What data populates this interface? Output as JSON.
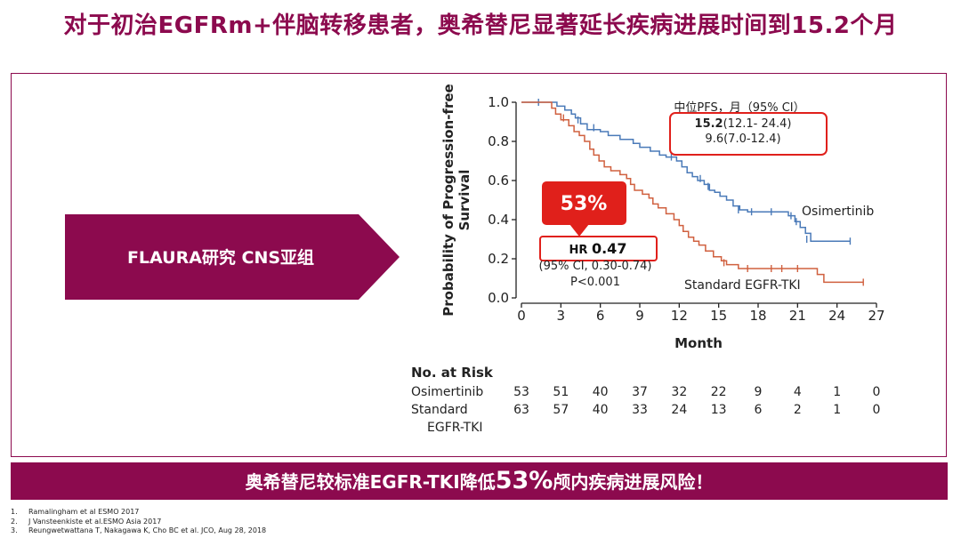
{
  "slide": {
    "title": "对于初治EGFRm+伴脑转移患者，奥希替尼显著延长疾病进展时间到15.2个月",
    "arrow_label": "FLAURA研究 CNS亚组",
    "banner_pre": "奥希替尼较标准EGFR-TKI降低",
    "banner_big": "53%",
    "banner_post": "颅内疾病进展风险！",
    "references": [
      {
        "num": "1.",
        "text": "Ramalingham et al ESMO 2017"
      },
      {
        "num": "2.",
        "text": "J Vansteenkiste et al.ESMO Asia 2017"
      },
      {
        "num": "3.",
        "text": "Reungwetwattana T, Nakagawa K, Cho BC et al. JCO, Aug 28, 2018"
      }
    ],
    "colors": {
      "brand": "#8c0a4e",
      "osimertinib": "#4a7ab8",
      "standard": "#d0603f",
      "callout_red": "#e0201b"
    }
  },
  "chart_data": {
    "type": "line",
    "xlabel": "Month",
    "ylabel_line1": "Probability of Progression-free",
    "ylabel_line2": "Survival",
    "xlim": [
      0,
      27
    ],
    "ylim": [
      0,
      1.0
    ],
    "x_ticks": [
      0,
      3,
      6,
      9,
      12,
      15,
      18,
      21,
      24,
      27
    ],
    "y_ticks": [
      "0.0",
      "0.2",
      "0.4",
      "0.6",
      "0.8",
      "1.0"
    ],
    "series": [
      {
        "name": "Osimertinib",
        "color": "#4a7ab8",
        "steps": [
          [
            0,
            1.0
          ],
          [
            1.5,
            1.0
          ],
          [
            2.7,
            0.98
          ],
          [
            3.3,
            0.96
          ],
          [
            3.8,
            0.94
          ],
          [
            4.1,
            0.92
          ],
          [
            4.5,
            0.89
          ],
          [
            5,
            0.86
          ],
          [
            6,
            0.85
          ],
          [
            6.6,
            0.83
          ],
          [
            7.5,
            0.81
          ],
          [
            8.5,
            0.79
          ],
          [
            9,
            0.77
          ],
          [
            9.8,
            0.75
          ],
          [
            10.5,
            0.73
          ],
          [
            11,
            0.72
          ],
          [
            11.8,
            0.7
          ],
          [
            12.2,
            0.67
          ],
          [
            12.6,
            0.64
          ],
          [
            13,
            0.62
          ],
          [
            13.4,
            0.6
          ],
          [
            13.9,
            0.58
          ],
          [
            14.3,
            0.55
          ],
          [
            14.7,
            0.54
          ],
          [
            15.1,
            0.52
          ],
          [
            15.6,
            0.5
          ],
          [
            16.1,
            0.47
          ],
          [
            16.6,
            0.45
          ],
          [
            17.2,
            0.44
          ],
          [
            18.2,
            0.44
          ],
          [
            20.3,
            0.42
          ],
          [
            20.8,
            0.39
          ],
          [
            21.2,
            0.36
          ],
          [
            21.6,
            0.33
          ],
          [
            22,
            0.29
          ],
          [
            25,
            0.29
          ]
        ],
        "censors": [
          [
            1.3,
            1.0
          ],
          [
            4.3,
            0.91
          ],
          [
            5.5,
            0.87
          ],
          [
            11.4,
            0.72
          ],
          [
            13.6,
            0.61
          ],
          [
            14.2,
            0.57
          ],
          [
            16.5,
            0.45
          ],
          [
            17.5,
            0.44
          ],
          [
            19,
            0.44
          ],
          [
            20.5,
            0.42
          ],
          [
            20.9,
            0.39
          ],
          [
            21.7,
            0.3
          ],
          [
            25,
            0.29
          ]
        ]
      },
      {
        "name": "Standard EGFR-TKI",
        "color": "#d0603f",
        "steps": [
          [
            0,
            1.0
          ],
          [
            1.8,
            1.0
          ],
          [
            2.3,
            0.97
          ],
          [
            2.6,
            0.94
          ],
          [
            3,
            0.91
          ],
          [
            3.6,
            0.88
          ],
          [
            4,
            0.85
          ],
          [
            4.4,
            0.83
          ],
          [
            4.8,
            0.8
          ],
          [
            5.2,
            0.76
          ],
          [
            5.5,
            0.73
          ],
          [
            5.9,
            0.7
          ],
          [
            6.3,
            0.67
          ],
          [
            6.8,
            0.65
          ],
          [
            7.5,
            0.63
          ],
          [
            8,
            0.61
          ],
          [
            8.3,
            0.58
          ],
          [
            8.6,
            0.55
          ],
          [
            9.2,
            0.53
          ],
          [
            9.7,
            0.51
          ],
          [
            10,
            0.48
          ],
          [
            10.4,
            0.46
          ],
          [
            11,
            0.43
          ],
          [
            11.6,
            0.4
          ],
          [
            12,
            0.37
          ],
          [
            12.3,
            0.34
          ],
          [
            12.7,
            0.31
          ],
          [
            13.1,
            0.29
          ],
          [
            13.5,
            0.27
          ],
          [
            14,
            0.24
          ],
          [
            14.6,
            0.21
          ],
          [
            15.2,
            0.19
          ],
          [
            15.6,
            0.17
          ],
          [
            16.5,
            0.15
          ],
          [
            18,
            0.15
          ],
          [
            22.5,
            0.12
          ],
          [
            23,
            0.08
          ],
          [
            26,
            0.08
          ]
        ],
        "censors": [
          [
            3.2,
            0.92
          ],
          [
            15.4,
            0.18
          ],
          [
            17.2,
            0.15
          ],
          [
            19,
            0.15
          ],
          [
            19.8,
            0.15
          ],
          [
            21,
            0.15
          ],
          [
            26,
            0.08
          ]
        ]
      }
    ],
    "annotations": {
      "median_header": "中位PFS，月（95% CI）",
      "osim_median_value": "15.2",
      "osim_median_ci": "(12.1- 24.4)",
      "std_median": "9.6(7.0-12.4)",
      "reduction": "53%",
      "hr_label": "HR ",
      "hr_value": "0.47",
      "hr_ci": "(95% CI, 0.30-0.74)",
      "p_value": "P<0.001",
      "osim_label": "Osimertinib",
      "std_label": "Standard EGFR-TKI"
    },
    "risk_table": {
      "header": "No. at Risk",
      "rows": [
        {
          "label": "Osimertinib",
          "label2": "",
          "values": [
            53,
            51,
            40,
            37,
            32,
            22,
            9,
            4,
            1,
            0
          ]
        },
        {
          "label": "Standard",
          "label2": "EGFR-TKI",
          "values": [
            63,
            57,
            40,
            33,
            24,
            13,
            6,
            2,
            1,
            0
          ]
        }
      ]
    }
  }
}
